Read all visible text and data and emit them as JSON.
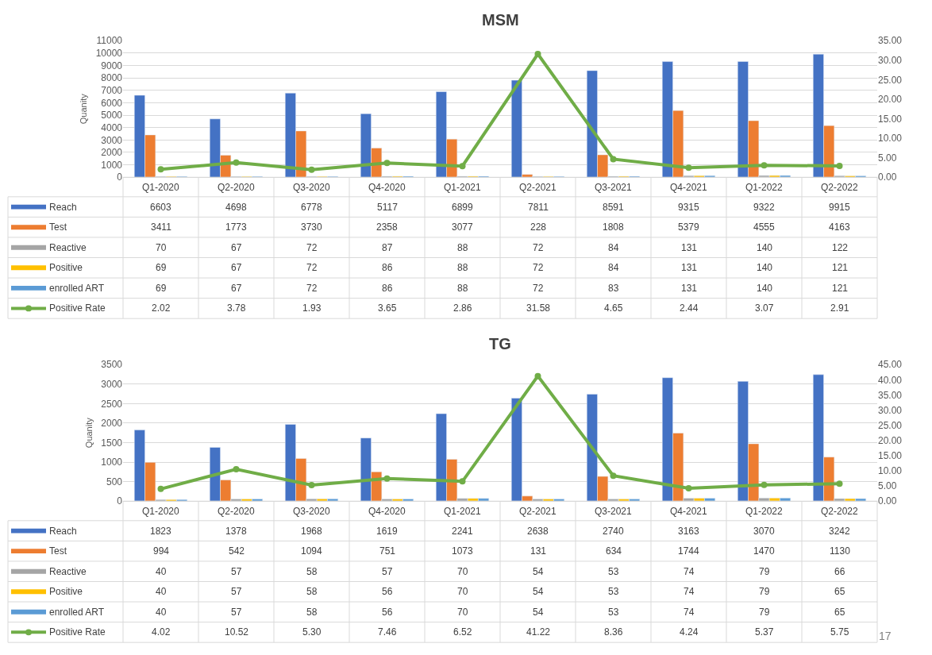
{
  "chart_data": [
    {
      "type": "bar",
      "title": "MSM",
      "ylabel": "Quanity",
      "categories": [
        "Q1-2020",
        "Q2-2020",
        "Q3-2020",
        "Q4-2020",
        "Q1-2021",
        "Q2-2021",
        "Q3-2021",
        "Q4-2021",
        "Q1-2022",
        "Q2-2022"
      ],
      "series": [
        {
          "name": "Reach",
          "color": "#4472c4",
          "values": [
            6603,
            4698,
            6778,
            5117,
            6899,
            7811,
            8591,
            9315,
            9322,
            9915
          ]
        },
        {
          "name": "Test",
          "color": "#ed7d31",
          "values": [
            3411,
            1773,
            3730,
            2358,
            3077,
            228,
            1808,
            5379,
            4555,
            4163
          ]
        },
        {
          "name": "Reactive",
          "color": "#a5a5a5",
          "values": [
            70,
            67,
            72,
            87,
            88,
            72,
            84,
            131,
            140,
            122
          ]
        },
        {
          "name": "Positive",
          "color": "#ffc000",
          "values": [
            69,
            67,
            72,
            86,
            88,
            72,
            84,
            131,
            140,
            121
          ]
        },
        {
          "name": "enrolled ART",
          "color": "#5b9bd5",
          "values": [
            69,
            67,
            72,
            86,
            88,
            72,
            83,
            131,
            140,
            121
          ]
        },
        {
          "name": "Positive Rate",
          "color": "#70ad47",
          "type": "line",
          "axis": "y2",
          "values": [
            2.02,
            3.78,
            1.93,
            3.65,
            2.86,
            31.58,
            4.65,
            2.44,
            3.07,
            2.91
          ],
          "value_labels": [
            "2.02",
            "3.78",
            "1.93",
            "3.65",
            "2.86",
            "31.58",
            "4.65",
            "2.44",
            "3.07",
            "2.91"
          ]
        }
      ],
      "ylim": [
        0,
        11000
      ],
      "yticks": [
        0,
        1000,
        2000,
        3000,
        4000,
        5000,
        6000,
        7000,
        8000,
        9000,
        10000,
        11000
      ],
      "y2lim": [
        0,
        35
      ],
      "y2ticks": [
        {
          "value": 0,
          "label": "0.00"
        },
        {
          "value": 5,
          "label": "5.00"
        },
        {
          "value": 10,
          "label": "10.00"
        },
        {
          "value": 15,
          "label": "15.00"
        },
        {
          "value": 20,
          "label": "20.00"
        },
        {
          "value": 25,
          "label": "25.00"
        },
        {
          "value": 30,
          "label": "30.00"
        },
        {
          "value": 35,
          "label": "35.00"
        }
      ],
      "grid": "y",
      "legend": "bottom",
      "data_labels": true,
      "marker": "circle",
      "line_style": "solid"
    },
    {
      "type": "bar",
      "title": "TG",
      "ylabel": "Quanity",
      "categories": [
        "Q1-2020",
        "Q2-2020",
        "Q3-2020",
        "Q4-2020",
        "Q1-2021",
        "Q2-2021",
        "Q3-2021",
        "Q4-2021",
        "Q1-2022",
        "Q2-2022"
      ],
      "series": [
        {
          "name": "Reach",
          "color": "#4472c4",
          "values": [
            1823,
            1378,
            1968,
            1619,
            2241,
            2638,
            2740,
            3163,
            3070,
            3242
          ]
        },
        {
          "name": "Test",
          "color": "#ed7d31",
          "values": [
            994,
            542,
            1094,
            751,
            1073,
            131,
            634,
            1744,
            1470,
            1130
          ]
        },
        {
          "name": "Reactive",
          "color": "#a5a5a5",
          "values": [
            40,
            57,
            58,
            57,
            70,
            54,
            53,
            74,
            79,
            66
          ]
        },
        {
          "name": "Positive",
          "color": "#ffc000",
          "values": [
            40,
            57,
            58,
            56,
            70,
            54,
            53,
            74,
            79,
            65
          ]
        },
        {
          "name": "enrolled ART",
          "color": "#5b9bd5",
          "values": [
            40,
            57,
            58,
            56,
            70,
            54,
            53,
            74,
            79,
            65
          ]
        },
        {
          "name": "Positive Rate",
          "color": "#70ad47",
          "type": "line",
          "axis": "y2",
          "values": [
            4.02,
            10.52,
            5.3,
            7.46,
            6.52,
            41.22,
            8.36,
            4.24,
            5.37,
            5.75
          ],
          "value_labels": [
            "4.02",
            "10.52",
            "5.30",
            "7.46",
            "6.52",
            "41.22",
            "8.36",
            "4.24",
            "5.37",
            "5.75"
          ]
        }
      ],
      "ylim": [
        0,
        3500
      ],
      "yticks": [
        0,
        500,
        1000,
        1500,
        2000,
        2500,
        3000,
        3500
      ],
      "y2lim": [
        0,
        45
      ],
      "y2ticks": [
        {
          "value": 0,
          "label": "0.00"
        },
        {
          "value": 5,
          "label": "5.00"
        },
        {
          "value": 10,
          "label": "10.00"
        },
        {
          "value": 15,
          "label": "15.00"
        },
        {
          "value": 20,
          "label": "20.00"
        },
        {
          "value": 25,
          "label": "25.00"
        },
        {
          "value": 30,
          "label": "30.00"
        },
        {
          "value": 35,
          "label": "35.00"
        },
        {
          "value": 40,
          "label": "40.00"
        },
        {
          "value": 45,
          "label": "45.00"
        }
      ],
      "grid": "y",
      "legend": "bottom",
      "data_labels": true,
      "marker": "circle",
      "line_style": "solid",
      "annotations": [
        "17"
      ]
    }
  ]
}
